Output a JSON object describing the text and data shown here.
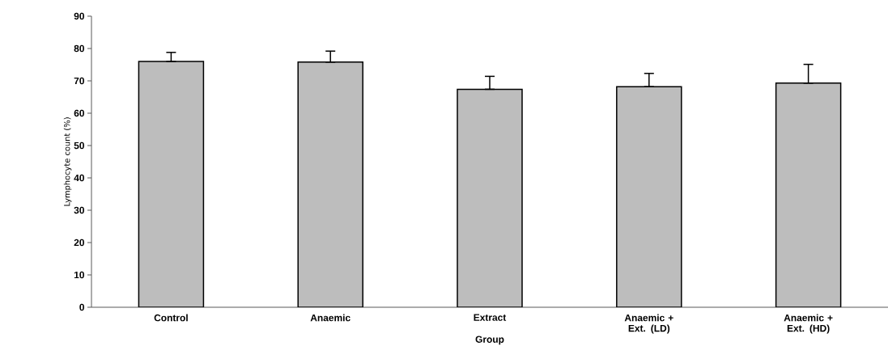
{
  "chart_data": {
    "type": "bar",
    "xlabel": "Group",
    "ylabel": "Lymphocyte count (%)",
    "categories": [
      "Control",
      "Anaemic",
      "Extract",
      "Anaemic + Ext. (LD)",
      "Anaemic + Ext. (HD)"
    ],
    "values": [
      76,
      75.8,
      67.4,
      68.2,
      69.3
    ],
    "errors": [
      [
        76,
        78.8
      ],
      [
        75.8,
        79.2
      ],
      [
        67.4,
        71.4
      ],
      [
        68.2,
        72.3
      ],
      [
        69.3,
        75.1
      ]
    ],
    "color": "#bdbdbd",
    "ylim": [
      0,
      90
    ],
    "yticks": [
      0,
      10,
      20,
      30,
      40,
      50,
      60,
      70,
      80,
      90
    ],
    "grid": false
  }
}
